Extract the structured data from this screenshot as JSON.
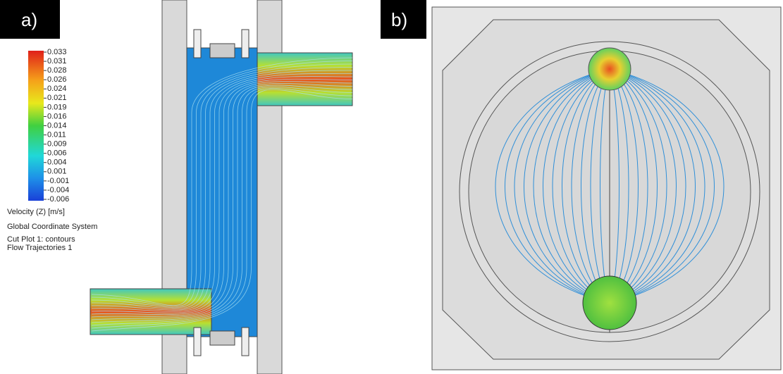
{
  "panels": [
    {
      "label": "a)"
    },
    {
      "label": "b)"
    }
  ],
  "legend": {
    "ticks": [
      "0.033",
      "0.031",
      "0.028",
      "0.026",
      "0.024",
      "0.021",
      "0.019",
      "0.016",
      "0.014",
      "0.011",
      "0.009",
      "0.006",
      "0.004",
      "0.001",
      "-0.001",
      "-0.004",
      "-0.006"
    ],
    "title": "Velocity (Z) [m/s]",
    "coordinate_system": "Global Coordinate System",
    "lines": [
      "Cut Plot 1: contours",
      "Flow Trajectories 1"
    ]
  }
}
